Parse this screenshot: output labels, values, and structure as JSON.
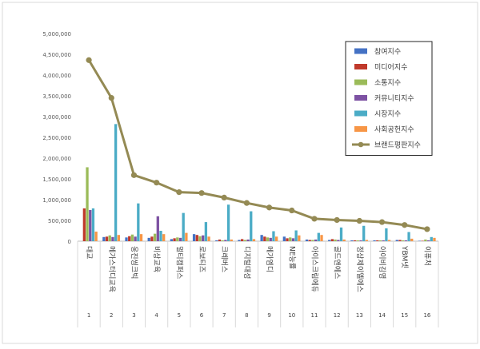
{
  "chart_data": {
    "type": "bar",
    "title": "",
    "xlabel": "",
    "ylabel": "",
    "ylim": [
      0,
      5000000
    ],
    "y_ticks": [
      "0",
      "500,000",
      "1,000,000",
      "1,500,000",
      "2,000,000",
      "2,500,000",
      "3,000,000",
      "3,500,000",
      "4,000,000",
      "4,500,000",
      "5,000,000"
    ],
    "grid": false,
    "legend_position": "top-right",
    "ranks": [
      "1",
      "2",
      "3",
      "4",
      "5",
      "6",
      "7",
      "8",
      "9",
      "10",
      "11",
      "12",
      "13",
      "14",
      "15",
      "16"
    ],
    "categories": [
      "대교",
      "메가스터디교육",
      "웅진씽크빅",
      "비상교육",
      "멀티캠퍼스",
      "로보티즈",
      "크레버스",
      "디지털대성",
      "메가엠디",
      "NE능률",
      "아이스크림에듀",
      "골드앤에스",
      "정상제이엘에스",
      "아이비김영",
      "YBM넷",
      "이퓨처"
    ],
    "series": [
      {
        "name": "참여지수",
        "color": "#4472c4",
        "kind": "bar",
        "values": [
          0,
          100000,
          90000,
          80000,
          50000,
          170000,
          20000,
          30000,
          150000,
          110000,
          40000,
          30000,
          20000,
          20000,
          30000,
          10000
        ]
      },
      {
        "name": "미디어지수",
        "color": "#c0392b",
        "kind": "bar",
        "values": [
          790000,
          110000,
          120000,
          110000,
          70000,
          150000,
          40000,
          50000,
          110000,
          70000,
          30000,
          50000,
          20000,
          20000,
          30000,
          10000
        ]
      },
      {
        "name": "소통지수",
        "color": "#9bbb59",
        "kind": "bar",
        "values": [
          1780000,
          140000,
          160000,
          180000,
          90000,
          120000,
          20000,
          30000,
          90000,
          90000,
          30000,
          40000,
          20000,
          20000,
          20000,
          40000
        ]
      },
      {
        "name": "커뮤니티지수",
        "color": "#7d52a3",
        "kind": "bar",
        "values": [
          750000,
          100000,
          110000,
          600000,
          80000,
          140000,
          30000,
          40000,
          80000,
          70000,
          40000,
          30000,
          20000,
          20000,
          20000,
          20000
        ]
      },
      {
        "name": "시장지수",
        "color": "#4bacc6",
        "kind": "bar",
        "values": [
          790000,
          2820000,
          910000,
          250000,
          680000,
          460000,
          880000,
          720000,
          240000,
          260000,
          200000,
          330000,
          370000,
          310000,
          220000,
          100000
        ]
      },
      {
        "name": "사회공헌지수",
        "color": "#f79646",
        "kind": "bar",
        "values": [
          230000,
          150000,
          170000,
          170000,
          200000,
          110000,
          40000,
          50000,
          110000,
          140000,
          150000,
          40000,
          30000,
          30000,
          60000,
          80000
        ]
      },
      {
        "name": "브랜드평판지수",
        "color": "#948a54",
        "kind": "line",
        "values": [
          4360000,
          3450000,
          1590000,
          1410000,
          1180000,
          1160000,
          1050000,
          920000,
          810000,
          740000,
          540000,
          510000,
          490000,
          460000,
          390000,
          290000
        ]
      }
    ]
  }
}
